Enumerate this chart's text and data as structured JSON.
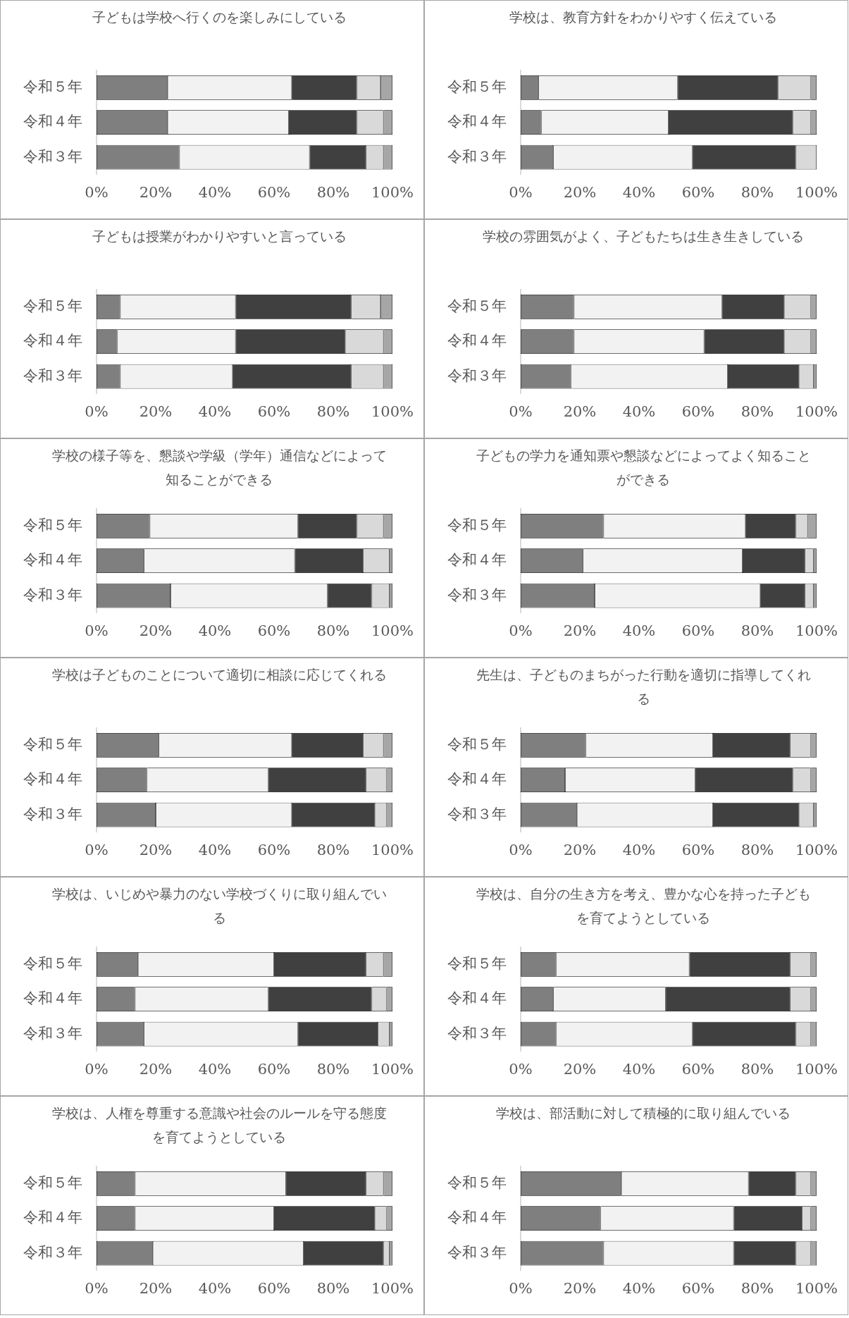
{
  "chart_data": [
    {
      "type": "bar",
      "orientation": "horizontal",
      "stacked": true,
      "title": "子どもは学校へ行くのを楽しみにしている",
      "categories": [
        "令和５年",
        "令和４年",
        "令和３年"
      ],
      "xlim": [
        0,
        100
      ],
      "xticks": [
        {
          "value": 0,
          "label": "0%"
        },
        {
          "value": 20,
          "label": "20%"
        },
        {
          "value": 40,
          "label": "40%"
        },
        {
          "value": 60,
          "label": "60%"
        },
        {
          "value": 80,
          "label": "80%"
        },
        {
          "value": 100,
          "label": "100%"
        }
      ],
      "grid": false,
      "series": [
        {
          "color": "#7f7f7f",
          "values": [
            24,
            24,
            28
          ]
        },
        {
          "color": "#f2f2f2",
          "values": [
            42,
            41,
            44
          ]
        },
        {
          "color": "#404040",
          "values": [
            22,
            23,
            19
          ]
        },
        {
          "color": "#d9d9d9",
          "values": [
            8,
            9,
            6
          ]
        },
        {
          "color": "#a6a6a6",
          "values": [
            4,
            3,
            3
          ]
        }
      ]
    },
    {
      "type": "bar",
      "orientation": "horizontal",
      "stacked": true,
      "title": "学校は、教育方針をわかりやすく伝えている",
      "categories": [
        "令和５年",
        "令和４年",
        "令和３年"
      ],
      "xlim": [
        0,
        100
      ],
      "xticks": [
        {
          "value": 0,
          "label": "0%"
        },
        {
          "value": 20,
          "label": "20%"
        },
        {
          "value": 40,
          "label": "40%"
        },
        {
          "value": 60,
          "label": "60%"
        },
        {
          "value": 80,
          "label": "80%"
        },
        {
          "value": 100,
          "label": "100%"
        }
      ],
      "grid": false,
      "series": [
        {
          "color": "#7f7f7f",
          "values": [
            6,
            7,
            11
          ]
        },
        {
          "color": "#f2f2f2",
          "values": [
            47,
            43,
            47
          ]
        },
        {
          "color": "#404040",
          "values": [
            34,
            42,
            35
          ]
        },
        {
          "color": "#d9d9d9",
          "values": [
            11,
            6,
            7
          ]
        },
        {
          "color": "#a6a6a6",
          "values": [
            2,
            2,
            0
          ]
        }
      ]
    },
    {
      "type": "bar",
      "orientation": "horizontal",
      "stacked": true,
      "title": "子どもは授業がわかりやすいと言っている",
      "categories": [
        "令和５年",
        "令和４年",
        "令和３年"
      ],
      "xlim": [
        0,
        100
      ],
      "xticks": [
        {
          "value": 0,
          "label": "0%"
        },
        {
          "value": 20,
          "label": "20%"
        },
        {
          "value": 40,
          "label": "40%"
        },
        {
          "value": 60,
          "label": "60%"
        },
        {
          "value": 80,
          "label": "80%"
        },
        {
          "value": 100,
          "label": "100%"
        }
      ],
      "grid": false,
      "series": [
        {
          "color": "#7f7f7f",
          "values": [
            8,
            7,
            8
          ]
        },
        {
          "color": "#f2f2f2",
          "values": [
            39,
            40,
            38
          ]
        },
        {
          "color": "#404040",
          "values": [
            39,
            37,
            40
          ]
        },
        {
          "color": "#d9d9d9",
          "values": [
            10,
            13,
            11
          ]
        },
        {
          "color": "#a6a6a6",
          "values": [
            4,
            3,
            3
          ]
        }
      ]
    },
    {
      "type": "bar",
      "orientation": "horizontal",
      "stacked": true,
      "title": "学校の雰囲気がよく、子どもたちは生き生きしている",
      "categories": [
        "令和５年",
        "令和４年",
        "令和３年"
      ],
      "xlim": [
        0,
        100
      ],
      "xticks": [
        {
          "value": 0,
          "label": "0%"
        },
        {
          "value": 20,
          "label": "20%"
        },
        {
          "value": 40,
          "label": "40%"
        },
        {
          "value": 60,
          "label": "60%"
        },
        {
          "value": 80,
          "label": "80%"
        },
        {
          "value": 100,
          "label": "100%"
        }
      ],
      "grid": false,
      "series": [
        {
          "color": "#7f7f7f",
          "values": [
            18,
            18,
            17
          ]
        },
        {
          "color": "#f2f2f2",
          "values": [
            50,
            44,
            53
          ]
        },
        {
          "color": "#404040",
          "values": [
            21,
            27,
            24
          ]
        },
        {
          "color": "#d9d9d9",
          "values": [
            9,
            9,
            5
          ]
        },
        {
          "color": "#a6a6a6",
          "values": [
            2,
            2,
            1
          ]
        }
      ]
    },
    {
      "type": "bar",
      "orientation": "horizontal",
      "stacked": true,
      "title": "学校の様子等を、懇談や学級（学年）通信などによって知ることができる",
      "categories": [
        "令和５年",
        "令和４年",
        "令和３年"
      ],
      "xlim": [
        0,
        100
      ],
      "xticks": [
        {
          "value": 0,
          "label": "0%"
        },
        {
          "value": 20,
          "label": "20%"
        },
        {
          "value": 40,
          "label": "40%"
        },
        {
          "value": 60,
          "label": "60%"
        },
        {
          "value": 80,
          "label": "80%"
        },
        {
          "value": 100,
          "label": "100%"
        }
      ],
      "grid": false,
      "series": [
        {
          "color": "#7f7f7f",
          "values": [
            18,
            16,
            25
          ]
        },
        {
          "color": "#f2f2f2",
          "values": [
            50,
            51,
            53
          ]
        },
        {
          "color": "#404040",
          "values": [
            20,
            23,
            15
          ]
        },
        {
          "color": "#d9d9d9",
          "values": [
            9,
            9,
            6
          ]
        },
        {
          "color": "#a6a6a6",
          "values": [
            3,
            1,
            1
          ]
        }
      ]
    },
    {
      "type": "bar",
      "orientation": "horizontal",
      "stacked": true,
      "title": "子どもの学力を通知票や懇談などによってよく知ることができる",
      "categories": [
        "令和５年",
        "令和４年",
        "令和３年"
      ],
      "xlim": [
        0,
        100
      ],
      "xticks": [
        {
          "value": 0,
          "label": "0%"
        },
        {
          "value": 20,
          "label": "20%"
        },
        {
          "value": 40,
          "label": "40%"
        },
        {
          "value": 60,
          "label": "60%"
        },
        {
          "value": 80,
          "label": "80%"
        },
        {
          "value": 100,
          "label": "100%"
        }
      ],
      "grid": false,
      "series": [
        {
          "color": "#7f7f7f",
          "values": [
            28,
            21,
            25
          ]
        },
        {
          "color": "#f2f2f2",
          "values": [
            48,
            54,
            56
          ]
        },
        {
          "color": "#404040",
          "values": [
            17,
            21,
            15
          ]
        },
        {
          "color": "#d9d9d9",
          "values": [
            4,
            3,
            3
          ]
        },
        {
          "color": "#a6a6a6",
          "values": [
            3,
            1,
            1
          ]
        }
      ]
    },
    {
      "type": "bar",
      "orientation": "horizontal",
      "stacked": true,
      "title": "学校は子どものことについて適切に相談に応じてくれる",
      "categories": [
        "令和５年",
        "令和４年",
        "令和３年"
      ],
      "xlim": [
        0,
        100
      ],
      "xticks": [
        {
          "value": 0,
          "label": "0%"
        },
        {
          "value": 20,
          "label": "20%"
        },
        {
          "value": 40,
          "label": "40%"
        },
        {
          "value": 60,
          "label": "60%"
        },
        {
          "value": 80,
          "label": "80%"
        },
        {
          "value": 100,
          "label": "100%"
        }
      ],
      "grid": false,
      "series": [
        {
          "color": "#7f7f7f",
          "values": [
            21,
            17,
            20
          ]
        },
        {
          "color": "#f2f2f2",
          "values": [
            45,
            41,
            46
          ]
        },
        {
          "color": "#404040",
          "values": [
            24,
            33,
            28
          ]
        },
        {
          "color": "#d9d9d9",
          "values": [
            7,
            7,
            4
          ]
        },
        {
          "color": "#a6a6a6",
          "values": [
            3,
            2,
            2
          ]
        }
      ]
    },
    {
      "type": "bar",
      "orientation": "horizontal",
      "stacked": true,
      "title": "先生は、子どものまちがった行動を適切に指導してくれる",
      "categories": [
        "令和５年",
        "令和４年",
        "令和３年"
      ],
      "xlim": [
        0,
        100
      ],
      "xticks": [
        {
          "value": 0,
          "label": "0%"
        },
        {
          "value": 20,
          "label": "20%"
        },
        {
          "value": 40,
          "label": "40%"
        },
        {
          "value": 60,
          "label": "60%"
        },
        {
          "value": 80,
          "label": "80%"
        },
        {
          "value": 100,
          "label": "100%"
        }
      ],
      "grid": false,
      "series": [
        {
          "color": "#7f7f7f",
          "values": [
            22,
            15,
            19
          ]
        },
        {
          "color": "#f2f2f2",
          "values": [
            43,
            44,
            46
          ]
        },
        {
          "color": "#404040",
          "values": [
            26,
            33,
            29
          ]
        },
        {
          "color": "#d9d9d9",
          "values": [
            7,
            6,
            5
          ]
        },
        {
          "color": "#a6a6a6",
          "values": [
            2,
            2,
            1
          ]
        }
      ]
    },
    {
      "type": "bar",
      "orientation": "horizontal",
      "stacked": true,
      "title": "学校は、いじめや暴力のない学校づくりに取り組んでいる",
      "categories": [
        "令和５年",
        "令和４年",
        "令和３年"
      ],
      "xlim": [
        0,
        100
      ],
      "xticks": [
        {
          "value": 0,
          "label": "0%"
        },
        {
          "value": 20,
          "label": "20%"
        },
        {
          "value": 40,
          "label": "40%"
        },
        {
          "value": 60,
          "label": "60%"
        },
        {
          "value": 80,
          "label": "80%"
        },
        {
          "value": 100,
          "label": "100%"
        }
      ],
      "grid": false,
      "series": [
        {
          "color": "#7f7f7f",
          "values": [
            14,
            13,
            16
          ]
        },
        {
          "color": "#f2f2f2",
          "values": [
            46,
            45,
            52
          ]
        },
        {
          "color": "#404040",
          "values": [
            31,
            35,
            27
          ]
        },
        {
          "color": "#d9d9d9",
          "values": [
            6,
            5,
            4
          ]
        },
        {
          "color": "#a6a6a6",
          "values": [
            3,
            2,
            1
          ]
        }
      ]
    },
    {
      "type": "bar",
      "orientation": "horizontal",
      "stacked": true,
      "title": "学校は、自分の生き方を考え、豊かな心を持った子どもを育てようとしている",
      "categories": [
        "令和５年",
        "令和４年",
        "令和３年"
      ],
      "xlim": [
        0,
        100
      ],
      "xticks": [
        {
          "value": 0,
          "label": "0%"
        },
        {
          "value": 20,
          "label": "20%"
        },
        {
          "value": 40,
          "label": "40%"
        },
        {
          "value": 60,
          "label": "60%"
        },
        {
          "value": 80,
          "label": "80%"
        },
        {
          "value": 100,
          "label": "100%"
        }
      ],
      "grid": false,
      "series": [
        {
          "color": "#7f7f7f",
          "values": [
            12,
            11,
            12
          ]
        },
        {
          "color": "#f2f2f2",
          "values": [
            45,
            38,
            46
          ]
        },
        {
          "color": "#404040",
          "values": [
            34,
            42,
            35
          ]
        },
        {
          "color": "#d9d9d9",
          "values": [
            7,
            7,
            5
          ]
        },
        {
          "color": "#a6a6a6",
          "values": [
            2,
            2,
            2
          ]
        }
      ]
    },
    {
      "type": "bar",
      "orientation": "horizontal",
      "stacked": true,
      "title": "学校は、人権を尊重する意識や社会のルールを守る態度を育てようとしている",
      "categories": [
        "令和５年",
        "令和４年",
        "令和３年"
      ],
      "xlim": [
        0,
        100
      ],
      "xticks": [
        {
          "value": 0,
          "label": "0%"
        },
        {
          "value": 20,
          "label": "20%"
        },
        {
          "value": 40,
          "label": "40%"
        },
        {
          "value": 60,
          "label": "60%"
        },
        {
          "value": 80,
          "label": "80%"
        },
        {
          "value": 100,
          "label": "100%"
        }
      ],
      "grid": false,
      "series": [
        {
          "color": "#7f7f7f",
          "values": [
            13,
            13,
            19
          ]
        },
        {
          "color": "#f2f2f2",
          "values": [
            51,
            47,
            51
          ]
        },
        {
          "color": "#404040",
          "values": [
            27,
            34,
            27
          ]
        },
        {
          "color": "#d9d9d9",
          "values": [
            6,
            4,
            2
          ]
        },
        {
          "color": "#a6a6a6",
          "values": [
            3,
            2,
            1
          ]
        }
      ]
    },
    {
      "type": "bar",
      "orientation": "horizontal",
      "stacked": true,
      "title": "学校は、部活動に対して積極的に取り組んでいる",
      "categories": [
        "令和５年",
        "令和４年",
        "令和３年"
      ],
      "xlim": [
        0,
        100
      ],
      "xticks": [
        {
          "value": 0,
          "label": "0%"
        },
        {
          "value": 20,
          "label": "20%"
        },
        {
          "value": 40,
          "label": "40%"
        },
        {
          "value": 60,
          "label": "60%"
        },
        {
          "value": 80,
          "label": "80%"
        },
        {
          "value": 100,
          "label": "100%"
        }
      ],
      "grid": false,
      "series": [
        {
          "color": "#7f7f7f",
          "values": [
            34,
            27,
            28
          ]
        },
        {
          "color": "#f2f2f2",
          "values": [
            43,
            45,
            44
          ]
        },
        {
          "color": "#404040",
          "values": [
            16,
            23,
            21
          ]
        },
        {
          "color": "#d9d9d9",
          "values": [
            5,
            3,
            5
          ]
        },
        {
          "color": "#a6a6a6",
          "values": [
            2,
            2,
            2
          ]
        }
      ]
    }
  ]
}
